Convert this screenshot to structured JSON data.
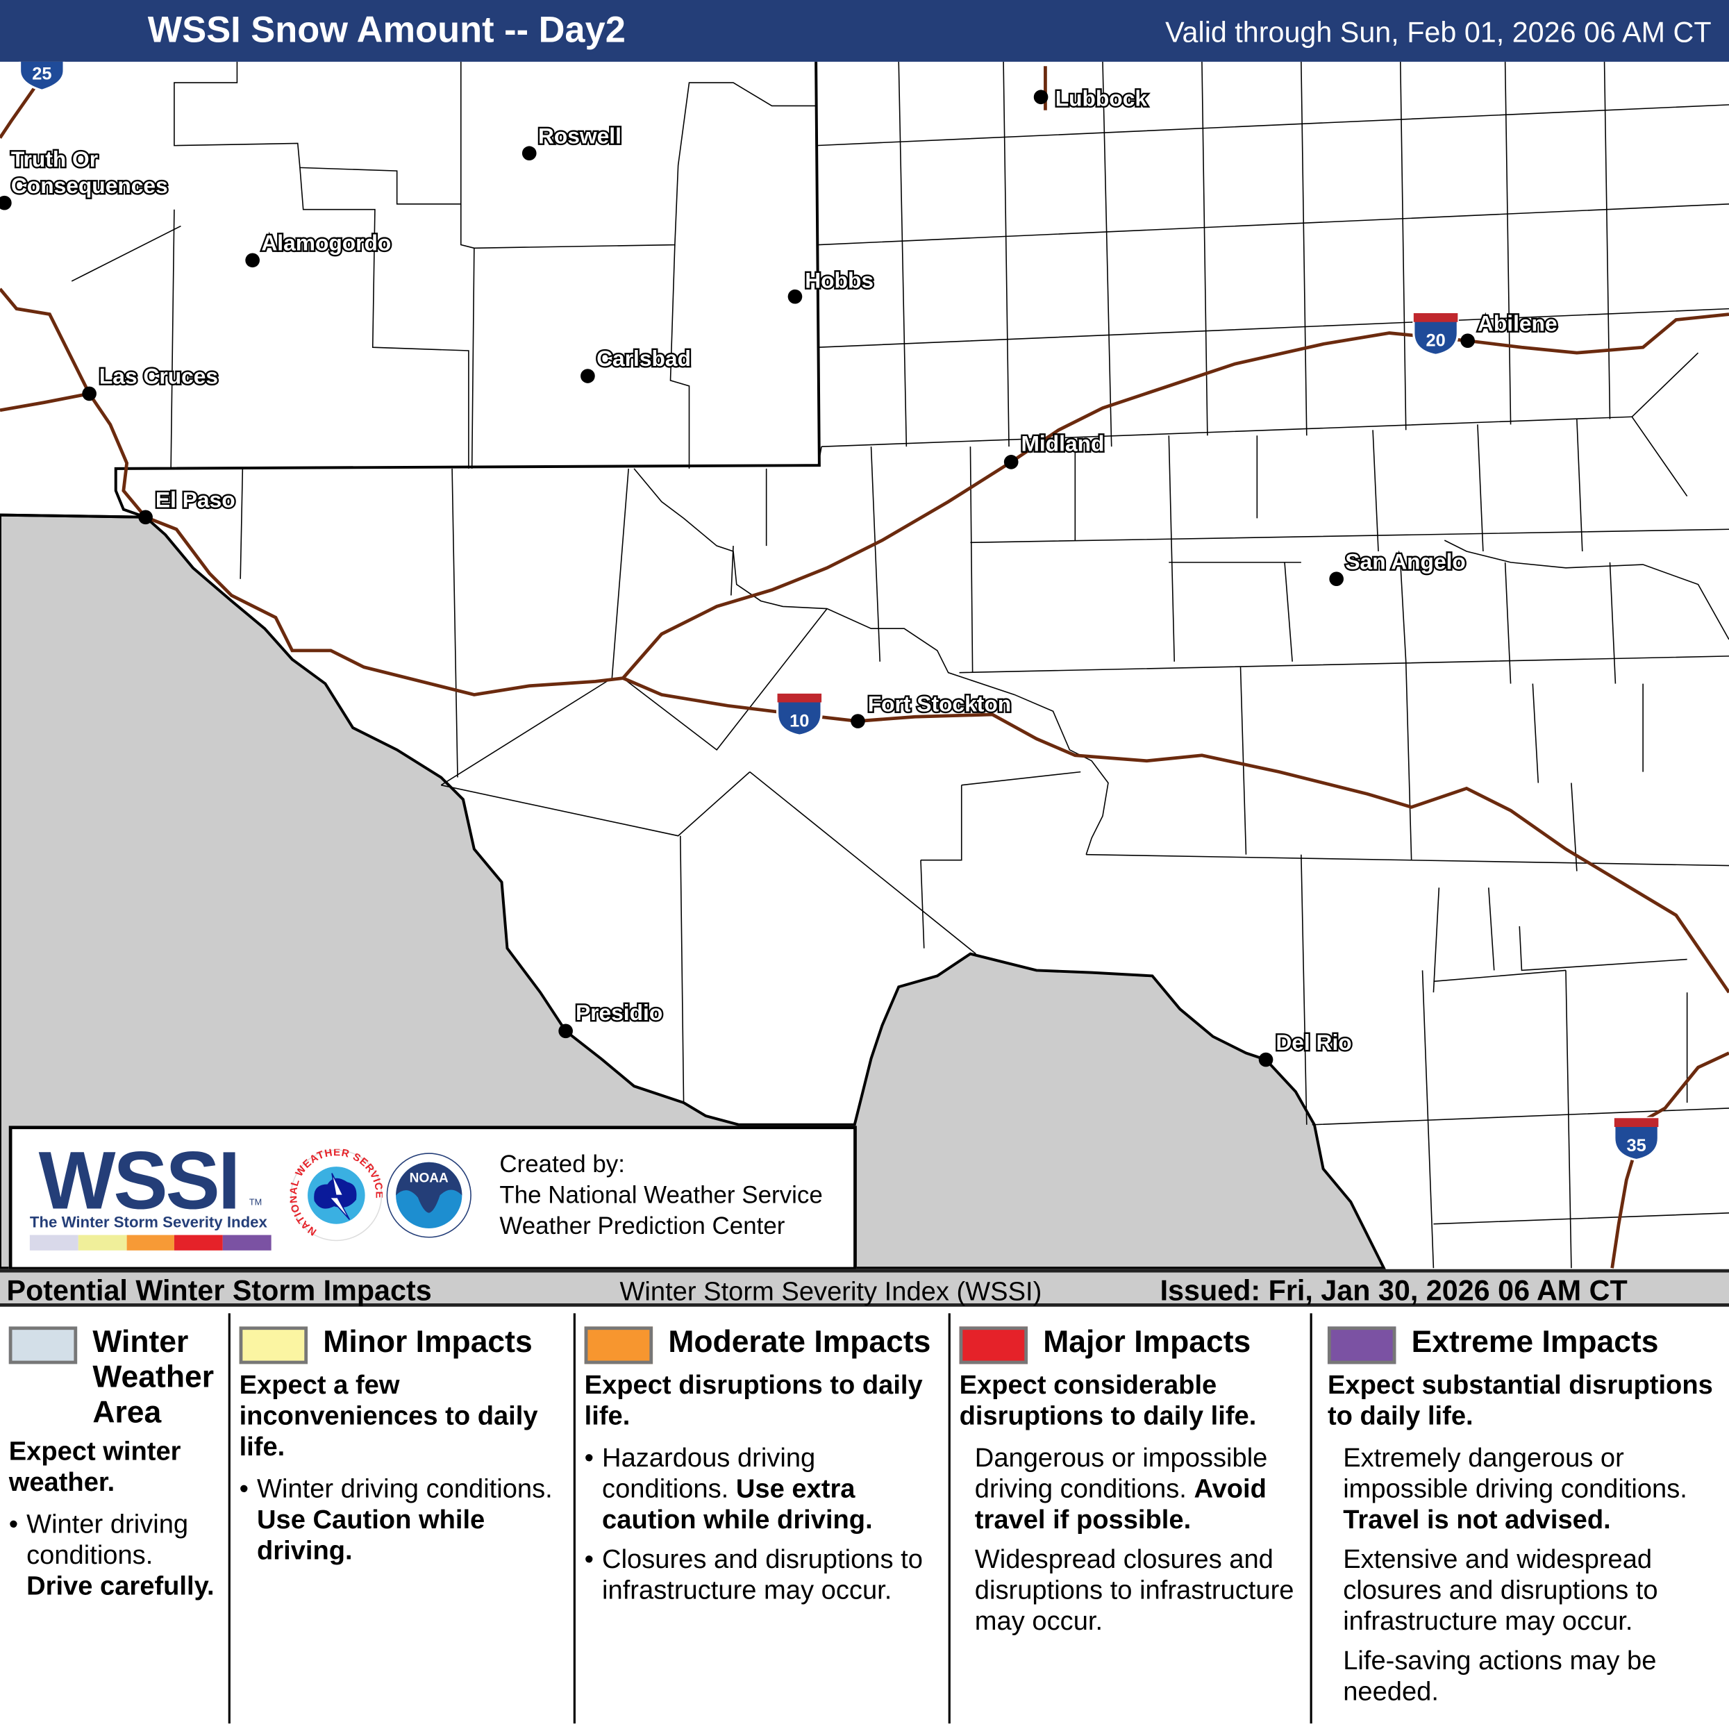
{
  "header": {
    "title": "WSSI Snow Amount -- Day2",
    "valid": "Valid through Sun, Feb 01, 2026 06 AM CT",
    "bg_color": "#243e78"
  },
  "map": {
    "cities": [
      {
        "name": "Lubbock"
      },
      {
        "name": "Roswell"
      },
      {
        "name": "Truth Or"
      },
      {
        "name": "Consequences"
      },
      {
        "name": "Alamogordo"
      },
      {
        "name": "Hobbs"
      },
      {
        "name": "Carlsbad"
      },
      {
        "name": "Las Cruces"
      },
      {
        "name": "El Paso"
      },
      {
        "name": "Midland"
      },
      {
        "name": "Abilene"
      },
      {
        "name": "San Angelo"
      },
      {
        "name": "Fort Stockton"
      },
      {
        "name": "Presidio"
      },
      {
        "name": "Del Rio"
      }
    ],
    "interstates": [
      "25",
      "20",
      "10",
      "35"
    ],
    "colors": {
      "outside_area": "#cccccc",
      "road": "#6b2a0e",
      "shield_blue": "#1f4b99",
      "shield_red": "#c0272d"
    }
  },
  "logo": {
    "wordmark": "WSSI",
    "tm": "TM",
    "subtitle": "The Winter Storm Severity Index",
    "scale_colors": [
      "#d9d9ea",
      "#f0ef9a",
      "#f79a36",
      "#e52229",
      "#7b52a3"
    ],
    "nws_text": "NATIONAL WEATHER SERVICE",
    "noaa_text": "NOAA",
    "created_by": "Created by:",
    "org1": "The National Weather Service",
    "org2": "Weather Prediction Center"
  },
  "legend_bar": {
    "left": "Potential Winter Storm Impacts",
    "mid": "Winter Storm Severity Index (WSSI)",
    "right": "Issued: Fri, Jan 30, 2026 06 AM CT"
  },
  "legend": [
    {
      "color": "#d3dfe8",
      "title": "Winter Weather Area",
      "t1": "Winter",
      "t2": "Weather",
      "t3": "Area",
      "lead": "Expect winter weather.",
      "b1": "Winter driving conditions.",
      "b1b": "Drive carefully."
    },
    {
      "color": "#fbf5a2",
      "title": "Minor Impacts",
      "lead": "Expect a few inconveniences to daily life.",
      "b1": "Winter driving conditions.",
      "b1b": "Use Caution while driving."
    },
    {
      "color": "#f7962f",
      "title": "Moderate Impacts",
      "lead": "Expect disruptions to daily life.",
      "b1": "Hazardous driving conditions.",
      "b1b": "Use extra caution while driving.",
      "b2": "Closures and disruptions to infrastructure may occur."
    },
    {
      "color": "#e52229",
      "title": "Major Impacts",
      "lead": "Expect considerable disruptions to daily life.",
      "b1": "Dangerous or impossible driving conditions.",
      "b1b": "Avoid travel if possible.",
      "b2": "Widespread closures and disruptions to infrastructure may occur."
    },
    {
      "color": "#7b52a3",
      "title": "Extreme Impacts",
      "lead": "Expect substantial disruptions to daily life.",
      "b1": "Extremely dangerous or impossible driving conditions.",
      "b1b": "Travel is not advised.",
      "b2": "Extensive and widespread closures and disruptions to infrastructure may occur.",
      "b3": "Life-saving actions may be needed."
    }
  ]
}
